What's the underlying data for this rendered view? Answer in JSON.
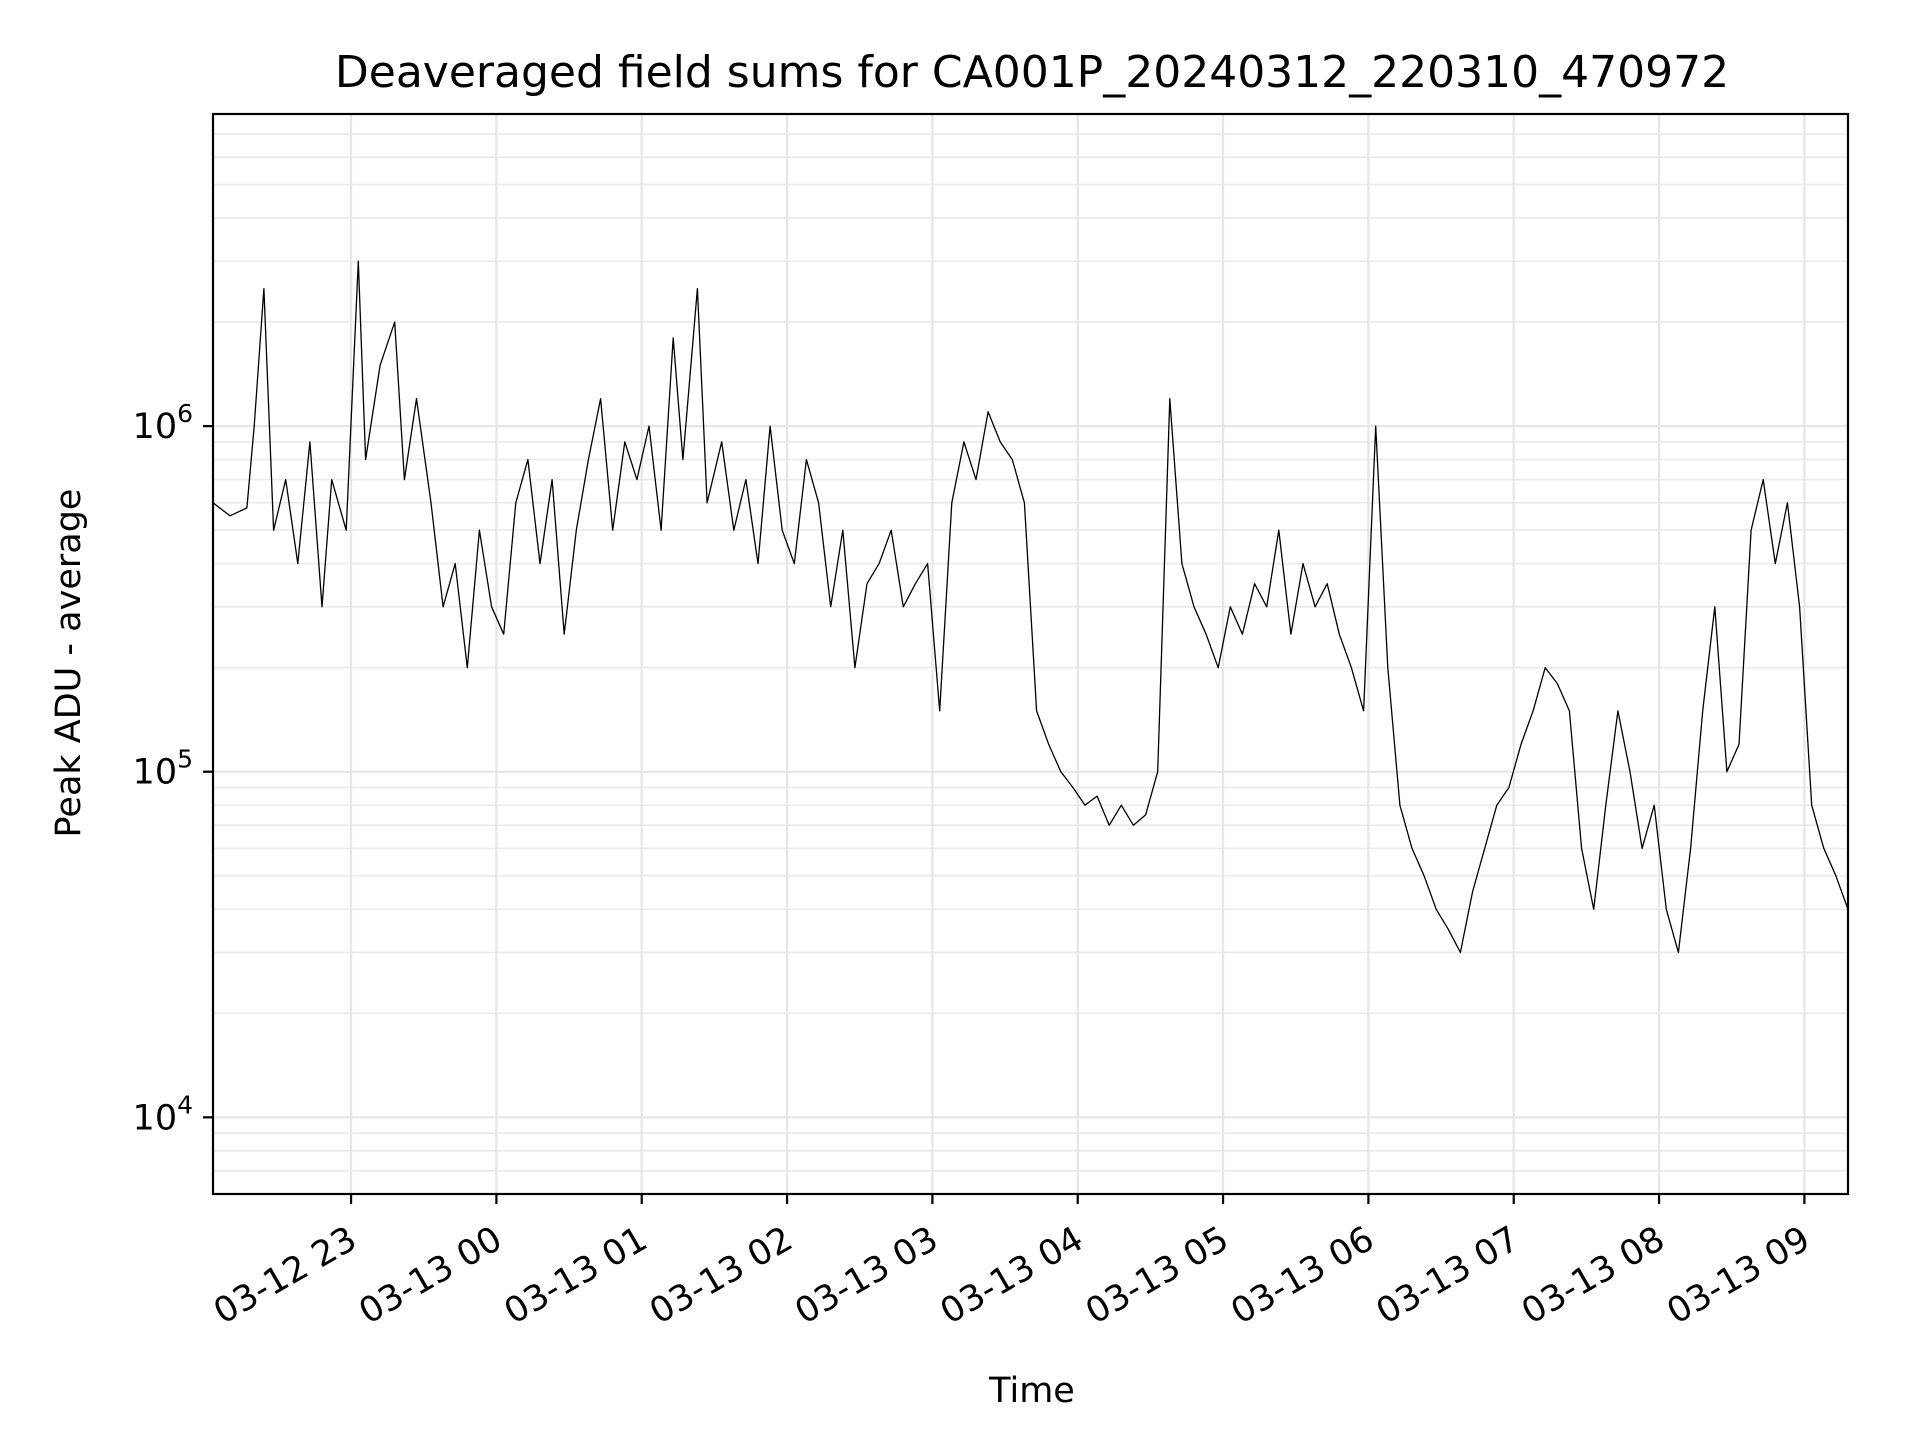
{
  "chart_data": {
    "type": "line",
    "title": "Deaveraged field sums for CA001P_20240312_220310_470972",
    "xlabel": "Time",
    "ylabel": "Peak ADU - average",
    "yscale": "log",
    "xlim": [
      "2024-03-12 22:03",
      "2024-03-13 09:18"
    ],
    "ylim": [
      6000,
      8000000
    ],
    "grid": true,
    "x_ticks": [
      "2024-03-12 23:00",
      "2024-03-13 00:00",
      "2024-03-13 01:00",
      "2024-03-13 02:00",
      "2024-03-13 03:00",
      "2024-03-13 04:00",
      "2024-03-13 05:00",
      "2024-03-13 06:00",
      "2024-03-13 07:00",
      "2024-03-13 08:00",
      "2024-03-13 09:00"
    ],
    "x_tick_labels": [
      "03-12 23",
      "03-13 00",
      "03-13 01",
      "03-13 02",
      "03-13 03",
      "03-13 04",
      "03-13 05",
      "03-13 06",
      "03-13 07",
      "03-13 08",
      "03-13 09"
    ],
    "y_ticks": [
      {
        "base": "10",
        "exp": "4",
        "value": 10000
      },
      {
        "base": "10",
        "exp": "5",
        "value": 100000
      },
      {
        "base": "10",
        "exp": "6",
        "value": 1000000
      }
    ],
    "line_color": "#000000",
    "series": [
      {
        "x": [
          "2024-03-12 22:03",
          "2024-03-12 22:10",
          "2024-03-12 22:17",
          "2024-03-12 22:20",
          "2024-03-12 22:24",
          "2024-03-12 22:28",
          "2024-03-12 22:33",
          "2024-03-12 22:38",
          "2024-03-12 22:43",
          "2024-03-12 22:48",
          "2024-03-12 22:52",
          "2024-03-12 22:58",
          "2024-03-12 23:03",
          "2024-03-12 23:06",
          "2024-03-12 23:12",
          "2024-03-12 23:18",
          "2024-03-12 23:22",
          "2024-03-12 23:27",
          "2024-03-12 23:33",
          "2024-03-12 23:38",
          "2024-03-12 23:43",
          "2024-03-12 23:48",
          "2024-03-12 23:53",
          "2024-03-12 23:58",
          "2024-03-13 00:03",
          "2024-03-13 00:08",
          "2024-03-13 00:13",
          "2024-03-13 00:18",
          "2024-03-13 00:23",
          "2024-03-13 00:28",
          "2024-03-13 00:33",
          "2024-03-13 00:38",
          "2024-03-13 00:43",
          "2024-03-13 00:48",
          "2024-03-13 00:53",
          "2024-03-13 00:58",
          "2024-03-13 01:03",
          "2024-03-13 01:08",
          "2024-03-13 01:13",
          "2024-03-13 01:17",
          "2024-03-13 01:23",
          "2024-03-13 01:27",
          "2024-03-13 01:33",
          "2024-03-13 01:38",
          "2024-03-13 01:43",
          "2024-03-13 01:48",
          "2024-03-13 01:53",
          "2024-03-13 01:58",
          "2024-03-13 02:03",
          "2024-03-13 02:08",
          "2024-03-13 02:13",
          "2024-03-13 02:18",
          "2024-03-13 02:23",
          "2024-03-13 02:28",
          "2024-03-13 02:33",
          "2024-03-13 02:38",
          "2024-03-13 02:43",
          "2024-03-13 02:48",
          "2024-03-13 02:53",
          "2024-03-13 02:58",
          "2024-03-13 03:03",
          "2024-03-13 03:08",
          "2024-03-13 03:13",
          "2024-03-13 03:18",
          "2024-03-13 03:23",
          "2024-03-13 03:28",
          "2024-03-13 03:33",
          "2024-03-13 03:38",
          "2024-03-13 03:43",
          "2024-03-13 03:48",
          "2024-03-13 03:53",
          "2024-03-13 03:58",
          "2024-03-13 04:03",
          "2024-03-13 04:08",
          "2024-03-13 04:13",
          "2024-03-13 04:18",
          "2024-03-13 04:23",
          "2024-03-13 04:28",
          "2024-03-13 04:33",
          "2024-03-13 04:38",
          "2024-03-13 04:43",
          "2024-03-13 04:48",
          "2024-03-13 04:53",
          "2024-03-13 04:58",
          "2024-03-13 05:03",
          "2024-03-13 05:08",
          "2024-03-13 05:13",
          "2024-03-13 05:18",
          "2024-03-13 05:23",
          "2024-03-13 05:28",
          "2024-03-13 05:33",
          "2024-03-13 05:38",
          "2024-03-13 05:43",
          "2024-03-13 05:48",
          "2024-03-13 05:53",
          "2024-03-13 05:58",
          "2024-03-13 06:03",
          "2024-03-13 06:08",
          "2024-03-13 06:13",
          "2024-03-13 06:18",
          "2024-03-13 06:23",
          "2024-03-13 06:28",
          "2024-03-13 06:33",
          "2024-03-13 06:38",
          "2024-03-13 06:43",
          "2024-03-13 06:48",
          "2024-03-13 06:53",
          "2024-03-13 06:58",
          "2024-03-13 07:03",
          "2024-03-13 07:08",
          "2024-03-13 07:13",
          "2024-03-13 07:18",
          "2024-03-13 07:23",
          "2024-03-13 07:28",
          "2024-03-13 07:33",
          "2024-03-13 07:38",
          "2024-03-13 07:43",
          "2024-03-13 07:48",
          "2024-03-13 07:53",
          "2024-03-13 07:58",
          "2024-03-13 08:03",
          "2024-03-13 08:08",
          "2024-03-13 08:13",
          "2024-03-13 08:18",
          "2024-03-13 08:23",
          "2024-03-13 08:28",
          "2024-03-13 08:33",
          "2024-03-13 08:38",
          "2024-03-13 08:43",
          "2024-03-13 08:48",
          "2024-03-13 08:53",
          "2024-03-13 08:58",
          "2024-03-13 09:03",
          "2024-03-13 09:08",
          "2024-03-13 09:13",
          "2024-03-13 09:18"
        ],
        "y": [
          600000,
          550000,
          580000,
          1000000,
          2500000,
          500000,
          700000,
          400000,
          900000,
          300000,
          700000,
          500000,
          3000000,
          800000,
          1500000,
          2000000,
          700000,
          1200000,
          600000,
          300000,
          400000,
          200000,
          500000,
          300000,
          250000,
          600000,
          800000,
          400000,
          700000,
          250000,
          500000,
          800000,
          1200000,
          500000,
          900000,
          700000,
          1000000,
          500000,
          1800000,
          800000,
          2500000,
          600000,
          900000,
          500000,
          700000,
          400000,
          1000000,
          500000,
          400000,
          800000,
          600000,
          300000,
          500000,
          200000,
          350000,
          400000,
          500000,
          300000,
          350000,
          400000,
          150000,
          600000,
          900000,
          700000,
          1100000,
          900000,
          800000,
          600000,
          150000,
          120000,
          100000,
          90000,
          80000,
          85000,
          70000,
          80000,
          70000,
          75000,
          100000,
          1200000,
          400000,
          300000,
          250000,
          200000,
          300000,
          250000,
          350000,
          300000,
          500000,
          250000,
          400000,
          300000,
          350000,
          250000,
          200000,
          150000,
          1000000,
          200000,
          80000,
          60000,
          50000,
          40000,
          35000,
          30000,
          45000,
          60000,
          80000,
          90000,
          120000,
          150000,
          200000,
          180000,
          150000,
          60000,
          40000,
          80000,
          150000,
          100000,
          60000,
          80000,
          40000,
          30000,
          60000,
          150000,
          300000,
          100000,
          120000,
          500000,
          700000,
          400000,
          600000,
          300000,
          80000,
          60000,
          50000,
          40000
        ]
      }
    ]
  }
}
